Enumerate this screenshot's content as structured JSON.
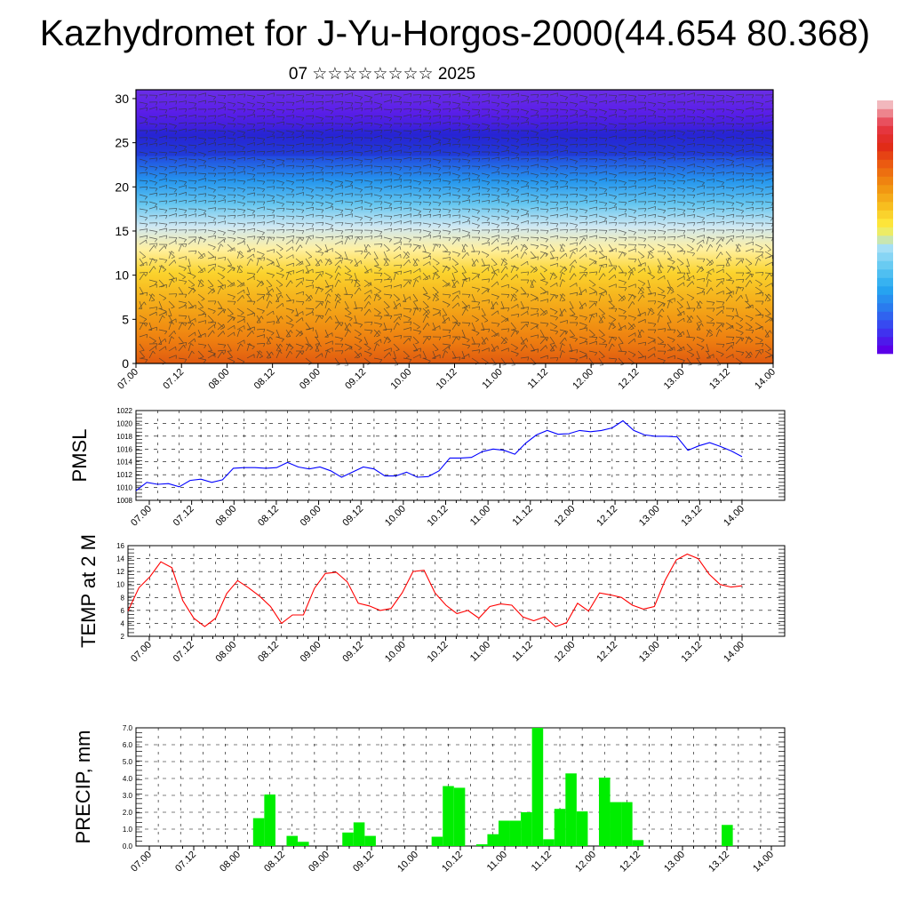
{
  "header": {
    "title": "Kazhydromet for J-Yu-Horgos-2000(44.654 80.368)",
    "subtitle": "07 ☆☆☆☆☆☆☆☆ 2025"
  },
  "chart_data": [
    {
      "type": "heatmap",
      "title": "Kazhydromet for J-Yu-Horgos-2000(44.654 80.368)",
      "subtitle": "07 ☆☆☆☆☆☆☆☆ 2025",
      "x_ticks": [
        "07.00",
        "07.12",
        "08.00",
        "08.12",
        "09.00",
        "09.12",
        "10.00",
        "10.12",
        "11.00",
        "11.12",
        "12.00",
        "12.12",
        "13.00",
        "13.12",
        "14.00"
      ],
      "y_ticks": [
        "0",
        "5",
        "10",
        "15",
        "20",
        "25",
        "30"
      ],
      "ylim": [
        0,
        31
      ],
      "colorbar": {
        "levels": 30,
        "colors_bottom_to_top": [
          "#5a00e8",
          "#3b3cf0",
          "#2a78ee",
          "#25a8f0",
          "#5fc8f2",
          "#a8e0f5",
          "#ffef40",
          "#f7c020",
          "#f09010",
          "#ec6010",
          "#e02818",
          "#e63a4a",
          "#f2b8bd"
        ]
      },
      "overlay": "wind barbs"
    },
    {
      "type": "line",
      "ylabel": "PMSL",
      "ylim": [
        1008,
        1022
      ],
      "y_ticks": [
        "1008",
        "1010",
        "1012",
        "1014",
        "1016",
        "1018",
        "1020",
        "1022"
      ],
      "x_ticks": [
        "07.00",
        "07.12",
        "08.00",
        "08.12",
        "09.00",
        "09.12",
        "10.00",
        "10.12",
        "11.00",
        "11.12",
        "12.00",
        "12.12",
        "13.00",
        "13.12",
        "14.00"
      ],
      "x_step_hours": 3,
      "color": "#0000ff",
      "values": [
        1009.5,
        1010.8,
        1010.5,
        1010.6,
        1010.1,
        1011.1,
        1011.3,
        1010.8,
        1011.2,
        1013.0,
        1013.1,
        1013.1,
        1013.0,
        1013.1,
        1013.9,
        1013.2,
        1012.9,
        1013.2,
        1012.6,
        1011.6,
        1012.4,
        1013.2,
        1012.9,
        1011.8,
        1011.8,
        1012.4,
        1011.6,
        1011.7,
        1012.6,
        1014.6,
        1014.6,
        1014.7,
        1015.6,
        1016.0,
        1015.8,
        1015.2,
        1016.9,
        1018.2,
        1018.9,
        1018.3,
        1018.4,
        1018.9,
        1018.7,
        1018.9,
        1019.3,
        1020.4,
        1018.9,
        1018.2,
        1018.0,
        1018.0,
        1017.9,
        1015.8,
        1016.5,
        1017.0,
        1016.4,
        1015.7,
        1014.8
      ]
    },
    {
      "type": "line",
      "ylabel": "TEMP at 2 M",
      "ylim": [
        2,
        16
      ],
      "y_ticks": [
        "2",
        "4",
        "6",
        "8",
        "10",
        "12",
        "14",
        "16"
      ],
      "x_ticks": [
        "07.00",
        "07.12",
        "08.00",
        "08.12",
        "09.00",
        "09.12",
        "10.00",
        "10.12",
        "11.00",
        "11.12",
        "12.00",
        "12.12",
        "13.00",
        "13.12",
        "14.00"
      ],
      "x_step_hours": 3,
      "color": "#ff0000",
      "values": [
        5.9,
        9.5,
        11.2,
        13.5,
        12.6,
        7.5,
        4.8,
        3.5,
        4.8,
        8.6,
        10.6,
        9.5,
        8.2,
        6.6,
        4.0,
        5.3,
        5.3,
        9.4,
        11.7,
        11.9,
        10.4,
        7.1,
        6.7,
        6.0,
        6.3,
        8.7,
        12.0,
        12.2,
        8.7,
        6.8,
        5.5,
        6.0,
        4.8,
        6.6,
        7.0,
        6.8,
        5.0,
        4.4,
        5.0,
        3.5,
        4.1,
        7.1,
        5.9,
        8.7,
        8.4,
        8.0,
        6.8,
        6.2,
        6.6,
        10.7,
        13.8,
        14.7,
        14.0,
        11.6,
        10.0,
        9.6,
        9.8
      ]
    },
    {
      "type": "bar",
      "ylabel": "PRECIP, mm",
      "ylim": [
        0,
        7
      ],
      "y_ticks": [
        "0.0",
        "1.0",
        "2.0",
        "3.0",
        "4.0",
        "5.0",
        "6.0",
        "7.0"
      ],
      "x_ticks": [
        "07.00",
        "07.12",
        "08.00",
        "08.12",
        "09.00",
        "09.12",
        "10.00",
        "10.12",
        "11.00",
        "11.12",
        "12.00",
        "12.12",
        "13.00",
        "13.12",
        "14.00"
      ],
      "x_step_hours": 3,
      "color": "#00ee00",
      "values": [
        0,
        0,
        0,
        0,
        0,
        0,
        0,
        0,
        0,
        0,
        0,
        1.65,
        3.05,
        0,
        0.6,
        0.25,
        0,
        0,
        0,
        0.8,
        1.4,
        0.6,
        0,
        0,
        0,
        0,
        0,
        0.55,
        3.55,
        3.45,
        0,
        0.1,
        0.7,
        1.5,
        1.5,
        2.0,
        7.0,
        0.4,
        2.2,
        4.3,
        2.05,
        0,
        4.05,
        2.6,
        2.6,
        0.35,
        0,
        0,
        0,
        0,
        0,
        0,
        0,
        1.25,
        0,
        0,
        0
      ]
    }
  ]
}
